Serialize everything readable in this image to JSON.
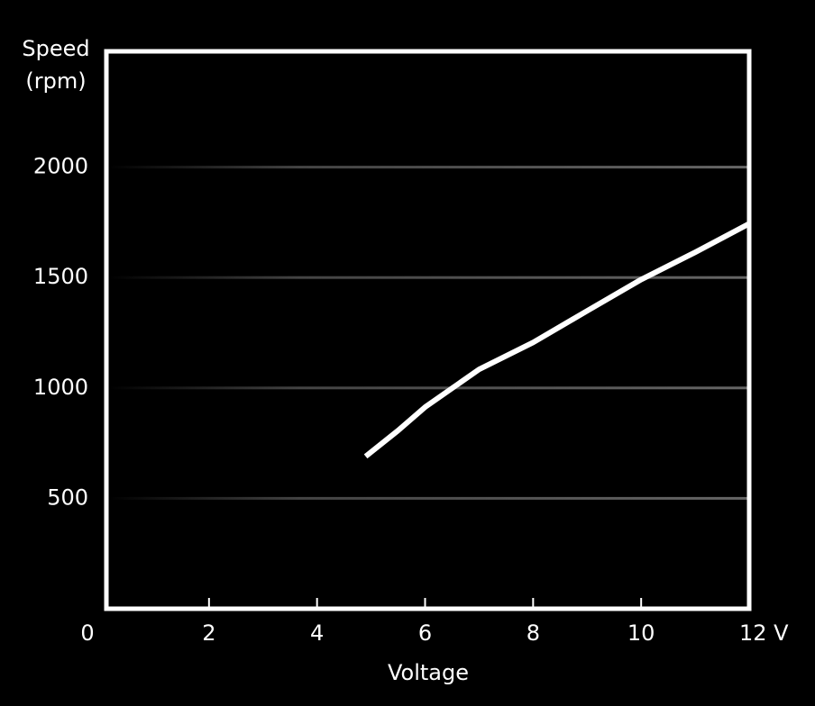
{
  "chart_data": {
    "type": "line",
    "y_label": [
      "Speed",
      "(rpm)"
    ],
    "x_label": "Voltage",
    "x": [
      4.9,
      5.5,
      6,
      7,
      8,
      9,
      10,
      11,
      12
    ],
    "series": [
      {
        "color": "#ffffff",
        "values": [
          690,
          807,
          913,
          1084,
          1206,
          1349,
          1491,
          1614,
          1744
        ]
      }
    ],
    "xlim": [
      0,
      12
    ],
    "xticks": [
      0,
      2,
      4,
      6,
      8,
      10,
      {
        "value": 12,
        "label": "12 V"
      }
    ],
    "ylim": [
      0,
      2500
    ],
    "yticks": [
      500,
      1000,
      1500,
      2000
    ],
    "grid": true
  }
}
